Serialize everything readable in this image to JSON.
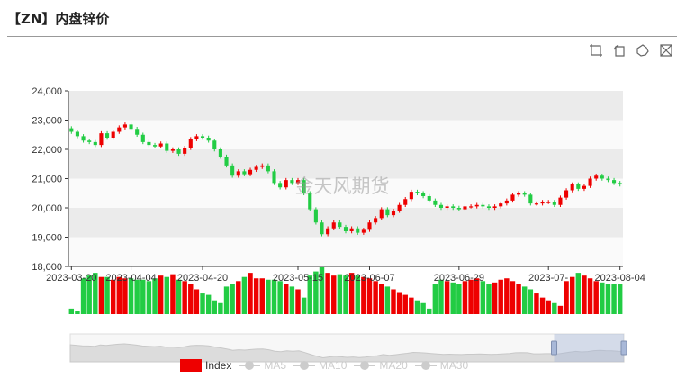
{
  "header": {
    "title": "【ZN】内盘锌价"
  },
  "toolbox": {
    "icons": [
      "zoom-select-icon",
      "zoom-back-icon",
      "restore-icon",
      "save-image-icon"
    ]
  },
  "watermark": "金天风期货",
  "legend": {
    "items": [
      {
        "label": "Index",
        "active": true
      },
      {
        "label": "MA5",
        "active": false
      },
      {
        "label": "MA10",
        "active": false
      },
      {
        "label": "MA20",
        "active": false
      },
      {
        "label": "MA30",
        "active": false
      }
    ]
  },
  "colors": {
    "up": "#ee0000",
    "down": "#22cc44",
    "band": "#ebebeb",
    "zoom": "#a8b8d8"
  },
  "chart_data": {
    "type": "candlestick",
    "ylim": [
      18000,
      24000
    ],
    "yticks": [
      "18,000",
      "19,000",
      "20,000",
      "21,000",
      "22,000",
      "23,000",
      "24,000"
    ],
    "xticks": [
      {
        "label": "2023-03-20",
        "index": 0
      },
      {
        "label": "2023-04-04",
        "index": 10
      },
      {
        "label": "2023-04-20",
        "index": 22
      },
      {
        "label": "2023-05-15",
        "index": 38
      },
      {
        "label": "2023-06-07",
        "index": 50
      },
      {
        "label": "2023-06-29",
        "index": 65
      },
      {
        "label": "2023-07-",
        "index": 80
      },
      {
        "label": "2023-08-04",
        "index": 92
      }
    ],
    "close": [
      22600,
      22450,
      22300,
      22250,
      22150,
      22550,
      22400,
      22600,
      22750,
      22850,
      22700,
      22500,
      22250,
      22150,
      22100,
      22200,
      21950,
      22000,
      21850,
      22050,
      22350,
      22450,
      22400,
      22300,
      22000,
      21750,
      21450,
      21100,
      21250,
      21150,
      21300,
      21400,
      21450,
      21250,
      20850,
      20700,
      20950,
      20850,
      20950,
      20500,
      19950,
      19500,
      19100,
      19300,
      19500,
      19350,
      19200,
      19300,
      19150,
      19250,
      19500,
      19650,
      19950,
      19750,
      19900,
      20100,
      20300,
      20550,
      20500,
      20400,
      20250,
      20100,
      20000,
      20050,
      20000,
      19950,
      20050,
      20050,
      20100,
      20050,
      20000,
      20050,
      20150,
      20250,
      20450,
      20500,
      20450,
      20150,
      20150,
      20200,
      20200,
      20100,
      20350,
      20600,
      20800,
      20650,
      20750,
      21000,
      21100,
      21000,
      20950,
      20850,
      20800
    ],
    "volume": [
      4,
      2,
      26,
      28,
      30,
      27,
      27,
      25,
      27,
      26,
      26,
      25,
      25,
      24,
      26,
      28,
      27,
      29,
      25,
      24,
      22,
      18,
      15,
      14,
      10,
      8,
      20,
      22,
      24,
      27,
      30,
      26,
      26,
      25,
      25,
      24,
      22,
      20,
      18,
      12,
      28,
      31,
      34,
      30,
      28,
      29,
      28,
      30,
      28,
      27,
      26,
      24,
      22,
      20,
      18,
      16,
      14,
      12,
      10,
      8,
      4,
      22,
      25,
      24,
      23,
      22,
      24,
      25,
      26,
      24,
      22,
      23,
      25,
      26,
      24,
      22,
      20,
      18,
      15,
      12,
      10,
      8,
      6,
      24,
      27,
      30,
      28,
      26,
      24,
      23,
      22,
      22,
      22
    ]
  }
}
